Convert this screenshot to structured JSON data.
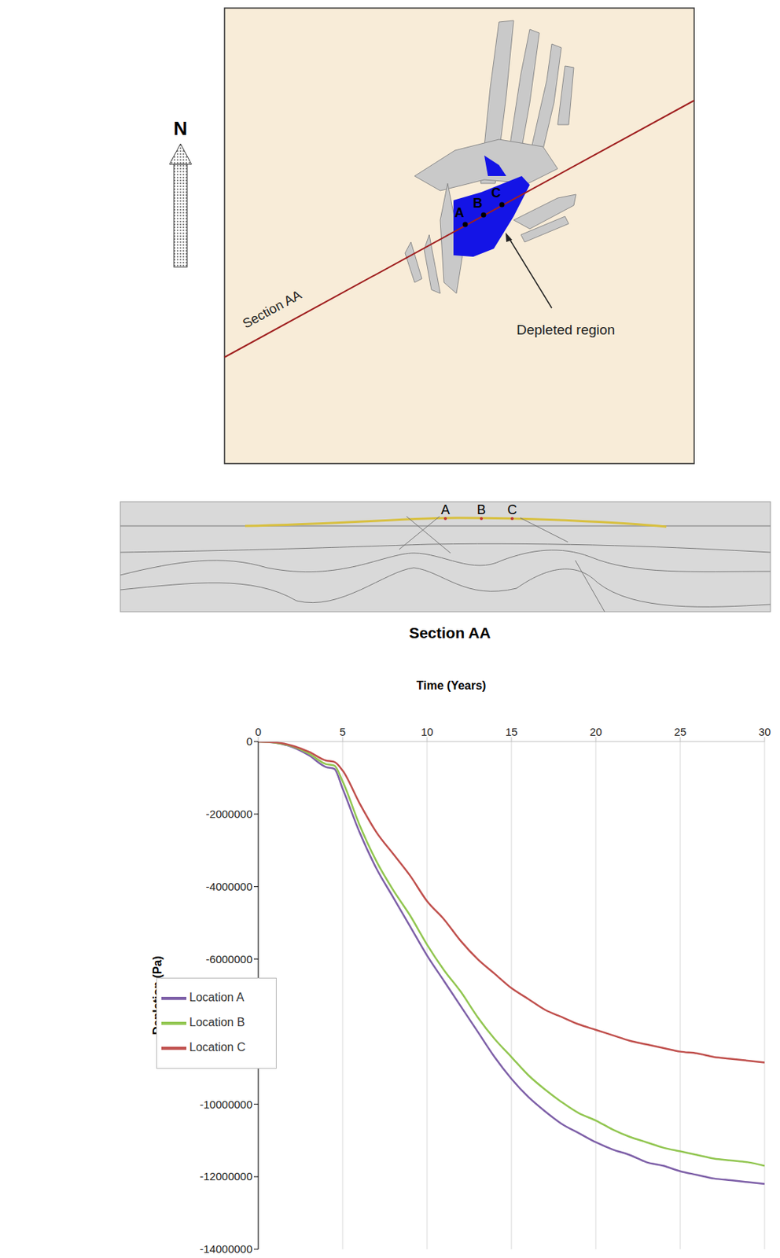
{
  "map": {
    "north_label": "N",
    "section_label": "Section AA",
    "points": [
      "A",
      "B",
      "C"
    ],
    "annotation": "Depleted region"
  },
  "section": {
    "title": "Section AA",
    "points": [
      "A",
      "B",
      "C"
    ]
  },
  "chart_data": {
    "type": "line",
    "x_label": "Time (Years)",
    "y_label": "Depletion (Pa)",
    "x": [
      0,
      1,
      2,
      3,
      4,
      4.5,
      5,
      6,
      7,
      8,
      9,
      10,
      11,
      12,
      13,
      14,
      15,
      16,
      17,
      18,
      19,
      20,
      21,
      22,
      23,
      24,
      25,
      26,
      27,
      28,
      29,
      30
    ],
    "xlim": [
      0,
      30
    ],
    "xticks": [
      0,
      5,
      10,
      15,
      20,
      25,
      30
    ],
    "ylim": [
      -14000000,
      0
    ],
    "yticks": [
      -14000000,
      -12000000,
      -10000000,
      -8000000,
      -6000000,
      -4000000,
      -2000000,
      0
    ],
    "grid": true,
    "legend": "lower left",
    "series": [
      {
        "name": "Location A",
        "color": "#7e60a8",
        "values": [
          0,
          -30000,
          -150000,
          -380000,
          -700000,
          -750000,
          -1300000,
          -2500000,
          -3500000,
          -4300000,
          -5100000,
          -5900000,
          -6600000,
          -7300000,
          -8000000,
          -8700000,
          -9300000,
          -9800000,
          -10200000,
          -10550000,
          -10800000,
          -11050000,
          -11250000,
          -11400000,
          -11600000,
          -11700000,
          -11850000,
          -11950000,
          -12050000,
          -12100000,
          -12150000,
          -12200000
        ]
      },
      {
        "name": "Location B",
        "color": "#92c651",
        "values": [
          0,
          -30000,
          -130000,
          -330000,
          -620000,
          -660000,
          -1100000,
          -2300000,
          -3300000,
          -4100000,
          -4800000,
          -5600000,
          -6300000,
          -6900000,
          -7600000,
          -8200000,
          -8700000,
          -9200000,
          -9600000,
          -9950000,
          -10250000,
          -10450000,
          -10700000,
          -10900000,
          -11050000,
          -11200000,
          -11300000,
          -11400000,
          -11500000,
          -11550000,
          -11600000,
          -11700000
        ]
      },
      {
        "name": "Location C",
        "color": "#c0504d",
        "values": [
          0,
          -20000,
          -110000,
          -280000,
          -520000,
          -560000,
          -800000,
          -1700000,
          -2500000,
          -3100000,
          -3700000,
          -4400000,
          -4900000,
          -5500000,
          -6000000,
          -6400000,
          -6800000,
          -7100000,
          -7400000,
          -7600000,
          -7800000,
          -7950000,
          -8100000,
          -8250000,
          -8350000,
          -8450000,
          -8550000,
          -8600000,
          -8700000,
          -8750000,
          -8800000,
          -8850000
        ]
      }
    ]
  }
}
